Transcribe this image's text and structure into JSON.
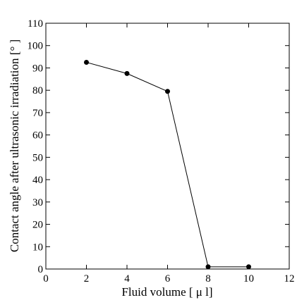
{
  "chart_data": {
    "type": "line",
    "title": "",
    "xlabel": "Fluid volume [ μ l]",
    "ylabel": "Contact angle after ultrasonic irradiation [° ]",
    "xlim": [
      0,
      12
    ],
    "ylim": [
      0,
      110
    ],
    "x_ticks": [
      0,
      2,
      4,
      6,
      8,
      10,
      12
    ],
    "y_ticks": [
      0,
      10,
      20,
      30,
      40,
      50,
      60,
      70,
      80,
      90,
      100,
      110
    ],
    "grid": false,
    "legend": "none",
    "series": [
      {
        "x": [
          2,
          4,
          6,
          8,
          10
        ],
        "y": [
          92.5,
          87.5,
          79.5,
          1,
          1
        ],
        "color": "#000000",
        "marker": "circle"
      }
    ]
  }
}
